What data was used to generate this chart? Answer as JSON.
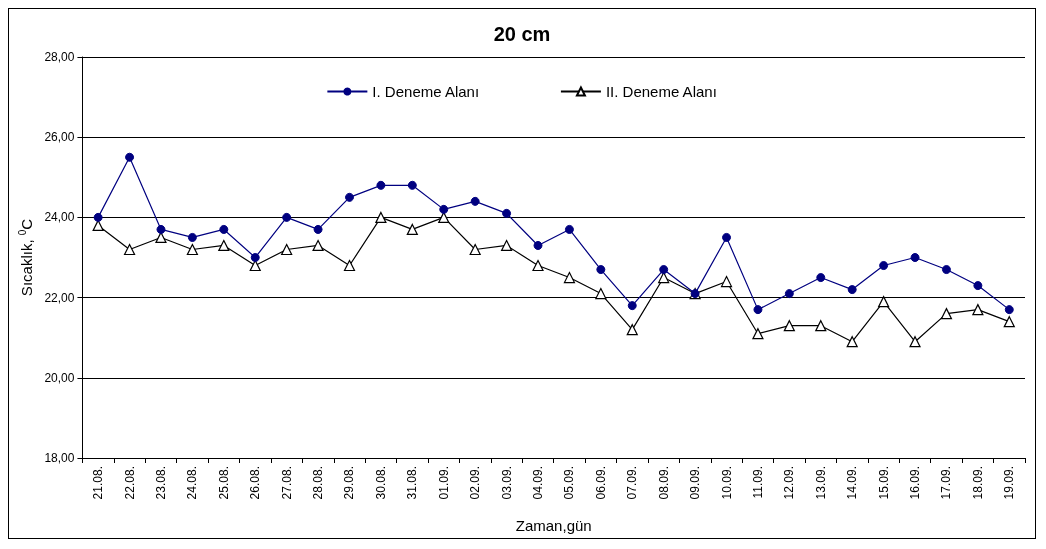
{
  "chart_data": {
    "type": "line",
    "title": "20 cm",
    "xlabel": "Zaman,gün",
    "ylabel": "Sıcaklık, $^{0}$C",
    "categories": [
      "21.08.",
      "22.08.",
      "23.08.",
      "24.08.",
      "25.08.",
      "26.08.",
      "27.08.",
      "28.08.",
      "29.08.",
      "30.08.",
      "31.08.",
      "01.09.",
      "02.09.",
      "03.09.",
      "04.09.",
      "05.09.",
      "06.09.",
      "07.09.",
      "08.09.",
      "09.09.",
      "10.09.",
      "11.09.",
      "12.09.",
      "13.09.",
      "14.09.",
      "15.09.",
      "16.09.",
      "17.09.",
      "18.09.",
      "19.09."
    ],
    "series": [
      {
        "name": "I. Deneme Alanı",
        "color": "#000080",
        "marker": "circle",
        "values": [
          24.0,
          25.5,
          23.7,
          23.5,
          23.7,
          23.0,
          24.0,
          23.7,
          24.5,
          24.8,
          24.8,
          24.2,
          24.4,
          24.1,
          23.3,
          23.7,
          22.7,
          21.8,
          22.7,
          22.1,
          23.5,
          21.7,
          22.1,
          22.5,
          22.2,
          22.8,
          23.0,
          22.7,
          22.3,
          21.7
        ]
      },
      {
        "name": "II. Deneme Alanı",
        "color": "#000000",
        "marker": "triangle",
        "values": [
          23.8,
          23.2,
          23.5,
          23.2,
          23.3,
          22.8,
          23.2,
          23.3,
          22.8,
          24.0,
          23.7,
          24.0,
          23.2,
          23.3,
          22.8,
          22.5,
          22.1,
          21.2,
          22.5,
          22.1,
          22.4,
          21.1,
          21.3,
          21.3,
          20.9,
          21.9,
          20.9,
          21.6,
          21.7,
          21.4
        ]
      }
    ],
    "ylim": [
      18,
      28
    ],
    "yticks": [
      {
        "value": 18,
        "label": "18,00"
      },
      {
        "value": 20,
        "label": "20,00"
      },
      {
        "value": 22,
        "label": "22,00"
      },
      {
        "value": 24,
        "label": "24,00"
      },
      {
        "value": 26,
        "label": "26,00"
      },
      {
        "value": 28,
        "label": "28,00"
      }
    ],
    "grid": "y",
    "legend": "top"
  }
}
